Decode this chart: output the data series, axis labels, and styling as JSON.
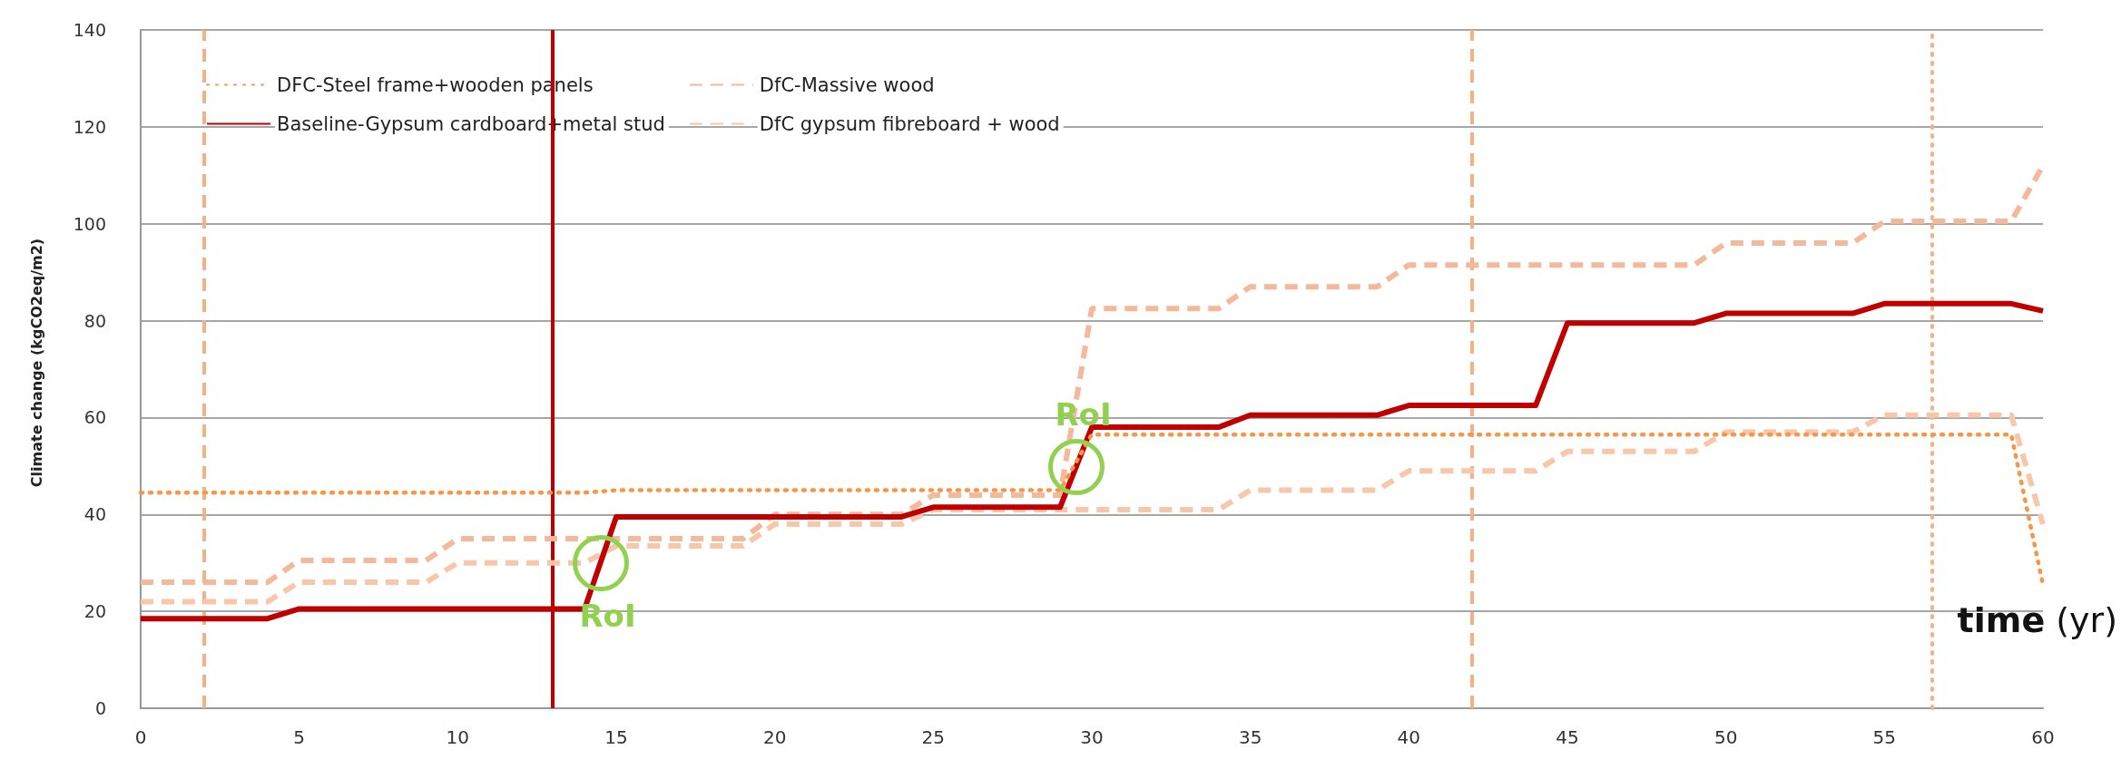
{
  "chart_data": {
    "type": "line",
    "xlabel": "time (yr)",
    "ylabel": "Climate change (kgCO2eq/m2)",
    "x": [
      0,
      4,
      5,
      9,
      10,
      14,
      15,
      19,
      20,
      24,
      25,
      29,
      30,
      34,
      35,
      39,
      40,
      44,
      45,
      49,
      50,
      54,
      55,
      59,
      60
    ],
    "series": [
      {
        "name": "DFC-Steel frame+wooden panels",
        "color": "#f79646",
        "line_style": "dotted",
        "values": [
          44.5,
          44.5,
          44.5,
          44.5,
          44.5,
          44.5,
          45,
          45,
          45,
          45,
          45,
          45,
          56.5,
          56.5,
          56.5,
          56.5,
          56.5,
          56.5,
          56.5,
          56.5,
          56.5,
          56.5,
          56.5,
          56.5,
          25.5
        ]
      },
      {
        "name": "Baseline-Gypsum cardboard+metal stud",
        "color": "#c00000",
        "line_style": "solid",
        "values": [
          18.5,
          18.5,
          20.5,
          20.5,
          20.5,
          20.5,
          39.5,
          39.5,
          39.5,
          39.5,
          41.5,
          41.5,
          58,
          58,
          60.5,
          60.5,
          62.5,
          62.5,
          79.5,
          79.5,
          81.5,
          81.5,
          83.5,
          83.5,
          82
        ]
      },
      {
        "name": "DfC-Massive wood",
        "color": "#f4b89b",
        "line_style": "dashed",
        "values": [
          26,
          26,
          30.5,
          30.5,
          35,
          35,
          35,
          35,
          40,
          40,
          44,
          44,
          82.5,
          82.5,
          87,
          87,
          91.5,
          91.5,
          91.5,
          91.5,
          96,
          96,
          100.5,
          100.5,
          112
        ]
      },
      {
        "name": "DfC gypsum fibreboard + wood",
        "color": "#f8c6a8",
        "line_style": "dashed",
        "values": [
          22,
          22,
          26,
          26,
          30,
          30,
          33.5,
          33.5,
          38,
          38,
          41,
          41,
          41,
          41,
          45,
          45,
          49,
          49,
          53,
          53,
          57,
          57,
          60.5,
          60.5,
          38
        ]
      }
    ],
    "xlim": [
      0,
      60
    ],
    "xticks": [
      0,
      5,
      10,
      15,
      20,
      25,
      30,
      35,
      40,
      45,
      50,
      55,
      60
    ],
    "ylim": [
      0,
      140
    ],
    "yticks": [
      0,
      20,
      40,
      60,
      80,
      100,
      120,
      140
    ],
    "grid": "y",
    "legend": "top left",
    "marker": "none",
    "ref_lines": [
      {
        "axis": "x",
        "value": 2,
        "color": "#f4b183",
        "line_style": "dashed"
      },
      {
        "axis": "x",
        "value": 13,
        "color": "#c00000",
        "line_style": "solid"
      },
      {
        "axis": "x",
        "value": 42,
        "color": "#f4b183",
        "line_style": "dashed"
      },
      {
        "axis": "x",
        "value": 56.5,
        "color": "#f4b183",
        "line_style": "dotted"
      }
    ],
    "annotations": [
      {
        "text": "RoI",
        "x": 14.5,
        "y": 30
      },
      {
        "text": "RoI",
        "x": 29.5,
        "y": 49.75
      }
    ]
  }
}
